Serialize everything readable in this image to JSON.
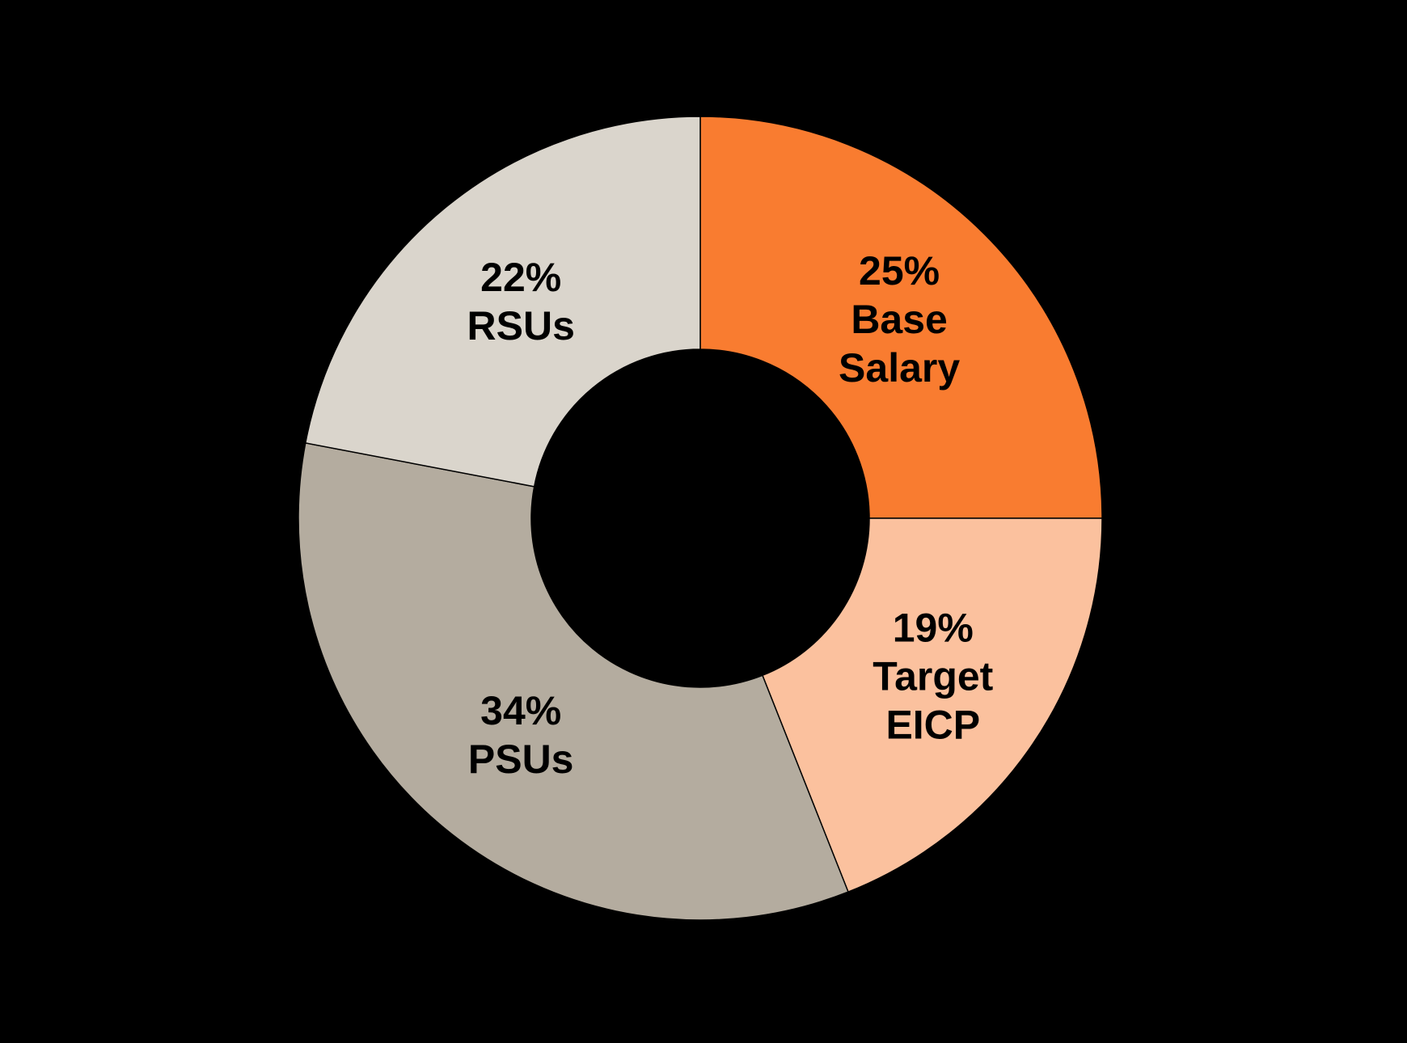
{
  "canvas": {
    "background_color": "#000000"
  },
  "chart_data": {
    "type": "pie",
    "subtype": "donut",
    "title": "",
    "legend": "none",
    "units": "percent",
    "direction": "clockwise",
    "start_angle_clockwise_from_top_deg": 0,
    "donut_hole_ratio": 0.42,
    "label_color": "#000000",
    "edge_color": "#000000",
    "background_color": "#000000",
    "slices": [
      {
        "label": "Base Salary",
        "value": 25,
        "display_lines": [
          "25%",
          "Base",
          "Salary"
        ],
        "color": "#F97C30"
      },
      {
        "label": "Target EICP",
        "value": 19,
        "display_lines": [
          "19%",
          "Target",
          "EICP"
        ],
        "color": "#FBC19E"
      },
      {
        "label": "PSUs",
        "value": 34,
        "display_lines": [
          "34%",
          "PSUs"
        ],
        "color": "#B4AC9F"
      },
      {
        "label": "RSUs",
        "value": 22,
        "display_lines": [
          "22%",
          "RSUs"
        ],
        "color": "#DAD5CC"
      }
    ]
  }
}
